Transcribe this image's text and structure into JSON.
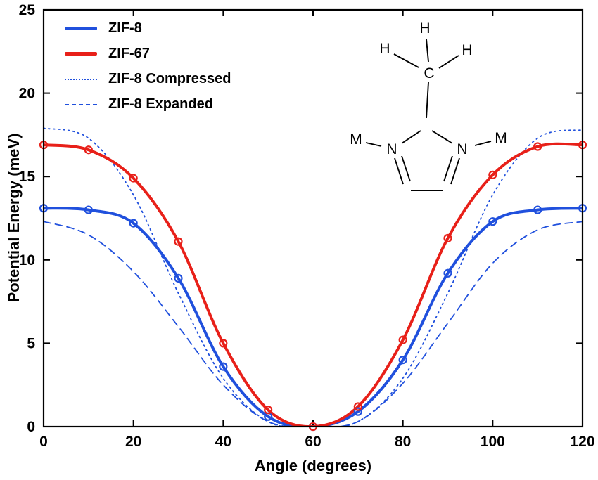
{
  "figure": {
    "background_color": "#ffffff",
    "frame_color": "#000000",
    "text_color": "#000000"
  },
  "axes": {
    "x_label": "Angle (degrees)",
    "y_label": "Potential Energy (meV)"
  },
  "molecule": {
    "hydrogen_label": "H",
    "carbon_label": "C",
    "nitrogen_label": "N",
    "metal_label": "M"
  },
  "chart_data": {
    "type": "line",
    "title": "",
    "xlabel": "Angle (degrees)",
    "ylabel": "Potential Energy (meV)",
    "xlim": [
      0,
      120
    ],
    "ylim": [
      0,
      25
    ],
    "xticks": [
      0,
      20,
      40,
      60,
      80,
      100,
      120
    ],
    "yticks": [
      0,
      5,
      10,
      15,
      20,
      25
    ],
    "grid": false,
    "legend_position": "top-left",
    "x": [
      0,
      10,
      20,
      30,
      40,
      50,
      60,
      70,
      80,
      90,
      100,
      110,
      120
    ],
    "series": [
      {
        "name": "ZIF-8",
        "color": "#2050dd",
        "style": "solid",
        "width": 4,
        "marker": "circle",
        "values": [
          13.1,
          13.0,
          12.2,
          8.9,
          3.6,
          0.6,
          0.0,
          0.9,
          4.0,
          9.2,
          12.3,
          13.0,
          13.1
        ]
      },
      {
        "name": "ZIF-67",
        "color": "#e82019",
        "style": "solid",
        "width": 4,
        "marker": "circle",
        "values": [
          16.9,
          16.6,
          14.9,
          11.1,
          5.0,
          1.0,
          0.0,
          1.2,
          5.2,
          11.3,
          15.1,
          16.8,
          16.9
        ]
      },
      {
        "name": "ZIF-8 Compressed",
        "color": "#2050dd",
        "style": "dotted",
        "width": 1.8,
        "marker": "none",
        "values": [
          17.9,
          17.3,
          13.9,
          8.0,
          2.9,
          0.3,
          0.0,
          0.3,
          2.9,
          8.0,
          13.9,
          17.3,
          17.8
        ]
      },
      {
        "name": "ZIF-8 Expanded",
        "color": "#2050dd",
        "style": "dashed",
        "width": 1.8,
        "marker": "none",
        "values": [
          12.3,
          11.5,
          9.3,
          6.0,
          2.5,
          0.3,
          0.0,
          0.3,
          2.6,
          6.2,
          9.8,
          11.8,
          12.3
        ]
      }
    ]
  }
}
